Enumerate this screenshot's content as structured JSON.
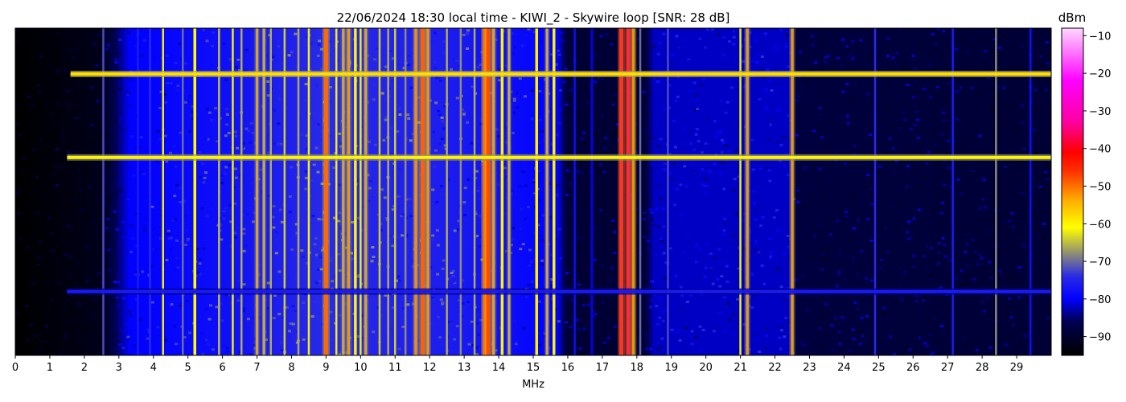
{
  "chart_data": {
    "type": "heatmap",
    "title": "22/06/2024 18:30 local time - KIWI_2 - Skywire loop [SNR: 28 dB]",
    "xlabel": "MHz",
    "xlim": [
      0,
      30
    ],
    "x_ticks": [
      0,
      1,
      2,
      3,
      4,
      5,
      6,
      7,
      8,
      9,
      10,
      11,
      12,
      13,
      14,
      15,
      16,
      17,
      18,
      19,
      20,
      21,
      22,
      23,
      24,
      25,
      26,
      27,
      28,
      29
    ],
    "grid": false,
    "colorbar": {
      "label": "dBm",
      "range": [
        -95,
        -8
      ],
      "ticks": [
        -10,
        -20,
        -30,
        -40,
        -50,
        -60,
        -70,
        -80,
        -90
      ],
      "colors": [
        {
          "v": -95,
          "c": "#000000"
        },
        {
          "v": -86,
          "c": "#000050"
        },
        {
          "v": -80,
          "c": "#0000ff"
        },
        {
          "v": -74,
          "c": "#2a2ae6"
        },
        {
          "v": -68,
          "c": "#8c8c78"
        },
        {
          "v": -61,
          "c": "#ffff00"
        },
        {
          "v": -54,
          "c": "#ffb000"
        },
        {
          "v": -46,
          "c": "#ff3000"
        },
        {
          "v": -41,
          "c": "#ff0000"
        },
        {
          "v": -33,
          "c": "#ff00a0"
        },
        {
          "v": -22,
          "c": "#ff00ff"
        },
        {
          "v": -8,
          "c": "#ffd8ff"
        }
      ]
    },
    "noise_floor_dbm": [
      {
        "mhz": 0,
        "dbm": -95
      },
      {
        "mhz": 2.5,
        "dbm": -92
      },
      {
        "mhz": 3.3,
        "dbm": -80
      },
      {
        "mhz": 6,
        "dbm": -78
      },
      {
        "mhz": 9,
        "dbm": -74
      },
      {
        "mhz": 12.5,
        "dbm": -76
      },
      {
        "mhz": 15.7,
        "dbm": -80
      },
      {
        "mhz": 16,
        "dbm": -89
      },
      {
        "mhz": 18.2,
        "dbm": -89
      },
      {
        "mhz": 18.5,
        "dbm": -82
      },
      {
        "mhz": 22.5,
        "dbm": -82
      },
      {
        "mhz": 22.6,
        "dbm": -88
      },
      {
        "mhz": 30,
        "dbm": -89
      }
    ],
    "vertical_signals": [
      {
        "mhz": 2.55,
        "dbm": -72
      },
      {
        "mhz": 3.55,
        "dbm": -76
      },
      {
        "mhz": 3.9,
        "dbm": -74
      },
      {
        "mhz": 4.28,
        "dbm": -62
      },
      {
        "mhz": 4.85,
        "dbm": -70
      },
      {
        "mhz": 5.2,
        "dbm": -61
      },
      {
        "mhz": 5.9,
        "dbm": -65
      },
      {
        "mhz": 6.3,
        "dbm": -62
      },
      {
        "mhz": 6.55,
        "dbm": -66
      },
      {
        "mhz": 7.0,
        "dbm": -55
      },
      {
        "mhz": 7.2,
        "dbm": -58
      },
      {
        "mhz": 7.4,
        "dbm": -66
      },
      {
        "mhz": 7.8,
        "dbm": -64
      },
      {
        "mhz": 8.2,
        "dbm": -66
      },
      {
        "mhz": 8.5,
        "dbm": -62
      },
      {
        "mhz": 9.0,
        "dbm": -45
      },
      {
        "mhz": 9.3,
        "dbm": -62
      },
      {
        "mhz": 9.5,
        "dbm": -56
      },
      {
        "mhz": 9.65,
        "dbm": -52
      },
      {
        "mhz": 9.85,
        "dbm": -60
      },
      {
        "mhz": 10.0,
        "dbm": -62
      },
      {
        "mhz": 10.15,
        "dbm": -55
      },
      {
        "mhz": 10.55,
        "dbm": -64
      },
      {
        "mhz": 10.8,
        "dbm": -66
      },
      {
        "mhz": 11.0,
        "dbm": -64
      },
      {
        "mhz": 11.3,
        "dbm": -68
      },
      {
        "mhz": 11.6,
        "dbm": -50
      },
      {
        "mhz": 11.8,
        "dbm": -44
      },
      {
        "mhz": 11.95,
        "dbm": -52
      },
      {
        "mhz": 12.5,
        "dbm": -66
      },
      {
        "mhz": 12.9,
        "dbm": -68
      },
      {
        "mhz": 13.3,
        "dbm": -66
      },
      {
        "mhz": 13.6,
        "dbm": -46
      },
      {
        "mhz": 13.7,
        "dbm": -42
      },
      {
        "mhz": 13.85,
        "dbm": -54
      },
      {
        "mhz": 14.1,
        "dbm": -60
      },
      {
        "mhz": 14.3,
        "dbm": -58
      },
      {
        "mhz": 15.1,
        "dbm": -60
      },
      {
        "mhz": 15.4,
        "dbm": -56
      },
      {
        "mhz": 15.6,
        "dbm": -60
      },
      {
        "mhz": 16.2,
        "dbm": -78
      },
      {
        "mhz": 16.7,
        "dbm": -80
      },
      {
        "mhz": 17.55,
        "dbm": -38
      },
      {
        "mhz": 17.75,
        "dbm": -36
      },
      {
        "mhz": 17.9,
        "dbm": -50
      },
      {
        "mhz": 18.1,
        "dbm": -70
      },
      {
        "mhz": 18.9,
        "dbm": -72
      },
      {
        "mhz": 21.0,
        "dbm": -62
      },
      {
        "mhz": 21.2,
        "dbm": -52
      },
      {
        "mhz": 22.5,
        "dbm": -52
      },
      {
        "mhz": 24.9,
        "dbm": -74
      },
      {
        "mhz": 27.15,
        "dbm": -76
      },
      {
        "mhz": 28.4,
        "dbm": -68
      },
      {
        "mhz": 29.4,
        "dbm": -78
      }
    ],
    "horizontal_signals": [
      {
        "row_fraction": 0.14,
        "from_mhz": 1.6,
        "to_mhz": 30,
        "dbm": -58
      },
      {
        "row_fraction": 0.395,
        "from_mhz": 1.5,
        "to_mhz": 30,
        "dbm": -60
      },
      {
        "row_fraction": 0.805,
        "from_mhz": 1.5,
        "to_mhz": 30,
        "dbm": -76
      }
    ]
  }
}
